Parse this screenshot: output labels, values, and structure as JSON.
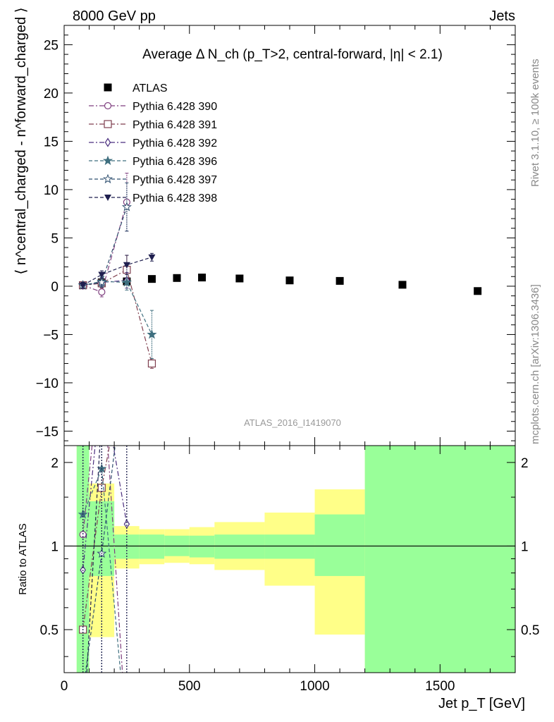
{
  "header": {
    "left": "8000 GeV pp",
    "right": "Jets"
  },
  "side_labels": {
    "rivet": "Rivet 3.1.10, ≥ 100k events",
    "mcplots": "mcplots.cern.ch [arXiv:1306.3436]"
  },
  "chart_data": [
    {
      "type": "scatter",
      "title": "Average Δ N_ch (p_T>2, central-forward, |η| < 2.1)",
      "ylabel": "⟨ n^central_charged - n^forward_charged ⟩",
      "xlim": [
        0,
        1800
      ],
      "ylim": [
        -16.5,
        27
      ],
      "yticks": [
        -15,
        -10,
        -5,
        0,
        5,
        10,
        15,
        20,
        25
      ],
      "watermark": "ATLAS_2016_I1419070",
      "legend_position": "top-left",
      "series": [
        {
          "name": "ATLAS",
          "color": "#000000",
          "marker": "square-filled",
          "line": "none",
          "x": [
            75,
            150,
            250,
            350,
            450,
            550,
            700,
            900,
            1100,
            1350,
            1650
          ],
          "y": [
            0.1,
            0.4,
            0.5,
            0.75,
            0.85,
            0.9,
            0.8,
            0.6,
            0.55,
            0.15,
            -0.5
          ]
        },
        {
          "name": "Pythia 6.428 390",
          "color": "#7f3f7f",
          "marker": "circle-open",
          "line": "dashdot",
          "x": [
            75,
            150,
            250
          ],
          "y": [
            0.1,
            -0.6,
            8.7
          ],
          "yerr": [
            0.3,
            0.5,
            3.0
          ]
        },
        {
          "name": "Pythia 6.428 391",
          "color": "#7f3f4f",
          "marker": "square-open",
          "line": "dashdot",
          "x": [
            75,
            150,
            250,
            350
          ],
          "y": [
            0.1,
            0.3,
            1.7,
            -8.0
          ],
          "yerr": [
            0.3,
            0.5,
            1.5,
            0.5
          ]
        },
        {
          "name": "Pythia 6.428 392",
          "color": "#4b2f7f",
          "marker": "diamond-open",
          "line": "dashdot",
          "x": [
            75,
            150,
            250
          ],
          "y": [
            0.1,
            0.4,
            0.6
          ],
          "yerr": [
            0.3,
            0.5,
            0.8
          ]
        },
        {
          "name": "Pythia 6.428 396",
          "color": "#3f6f7f",
          "marker": "star-filled",
          "line": "dash",
          "x": [
            75,
            150,
            250,
            350
          ],
          "y": [
            0.1,
            0.5,
            0.4,
            -5.0
          ],
          "yerr": [
            0.3,
            0.5,
            0.8,
            2.5
          ]
        },
        {
          "name": "Pythia 6.428 397",
          "color": "#2f4f6f",
          "marker": "star-open",
          "line": "dash",
          "x": [
            75,
            150,
            250
          ],
          "y": [
            0.1,
            0.4,
            8.2
          ],
          "yerr": [
            0.3,
            0.5,
            2.5
          ]
        },
        {
          "name": "Pythia 6.428 398",
          "color": "#1f1f4f",
          "marker": "triangle-down-filled",
          "line": "dash",
          "x": [
            75,
            150,
            250,
            350
          ],
          "y": [
            0.1,
            1.2,
            2.2,
            3.0
          ],
          "yerr": [
            0.3,
            0.4,
            1.0,
            0.4
          ]
        }
      ]
    },
    {
      "type": "line",
      "ylabel": "Ratio to ATLAS",
      "xlabel": "Jet p_T [GeV]",
      "xlim": [
        0,
        1800
      ],
      "ylim": [
        0.35,
        2.3
      ],
      "yscale": "log",
      "yticks": [
        0.5,
        1,
        2
      ],
      "xticks": [
        0,
        500,
        1000,
        1500
      ],
      "reference": 1,
      "bands": [
        {
          "x0": 50,
          "x1": 100,
          "yellow": [
            0.35,
            2.3
          ],
          "green": [
            0.35,
            2.3
          ]
        },
        {
          "x0": 100,
          "x1": 200,
          "yellow": [
            0.47,
            1.68
          ],
          "green": [
            0.78,
            1.45
          ]
        },
        {
          "x0": 200,
          "x1": 300,
          "yellow": [
            0.83,
            1.18
          ],
          "green": [
            0.9,
            1.1
          ]
        },
        {
          "x0": 300,
          "x1": 400,
          "yellow": [
            0.86,
            1.15
          ],
          "green": [
            0.9,
            1.1
          ]
        },
        {
          "x0": 400,
          "x1": 500,
          "yellow": [
            0.87,
            1.15
          ],
          "green": [
            0.92,
            1.09
          ]
        },
        {
          "x0": 500,
          "x1": 600,
          "yellow": [
            0.86,
            1.17
          ],
          "green": [
            0.91,
            1.09
          ]
        },
        {
          "x0": 600,
          "x1": 800,
          "yellow": [
            0.82,
            1.22
          ],
          "green": [
            0.9,
            1.1
          ]
        },
        {
          "x0": 800,
          "x1": 1000,
          "yellow": [
            0.72,
            1.32
          ],
          "green": [
            0.9,
            1.1
          ]
        },
        {
          "x0": 1000,
          "x1": 1200,
          "yellow": [
            0.48,
            1.6
          ],
          "green": [
            0.78,
            1.3
          ]
        },
        {
          "x0": 1200,
          "x1": 1800,
          "yellow": [
            0.35,
            2.3
          ],
          "green": [
            0.35,
            2.3
          ]
        }
      ],
      "series": [
        {
          "name": "Pythia 6.428 390",
          "x": [
            75,
            150,
            250
          ],
          "y": [
            1.1,
            5.0,
            0.2
          ]
        },
        {
          "name": "Pythia 6.428 391",
          "x": [
            75,
            150,
            250
          ],
          "y": [
            0.5,
            1.62,
            5.0
          ]
        },
        {
          "name": "Pythia 6.428 392",
          "x": [
            75,
            150,
            250
          ],
          "y": [
            0.82,
            4.0,
            1.2
          ]
        },
        {
          "name": "Pythia 6.428 396",
          "x": [
            75,
            150,
            250
          ],
          "y": [
            1.3,
            1.9,
            0.2
          ]
        },
        {
          "name": "Pythia 6.428 397",
          "x": [
            75,
            150,
            250
          ],
          "y": [
            0.3,
            0.94,
            5.0
          ]
        },
        {
          "name": "Pythia 6.428 398",
          "x": [
            75,
            150,
            250
          ],
          "y": [
            0.2,
            3.0,
            5.0
          ]
        }
      ]
    }
  ]
}
